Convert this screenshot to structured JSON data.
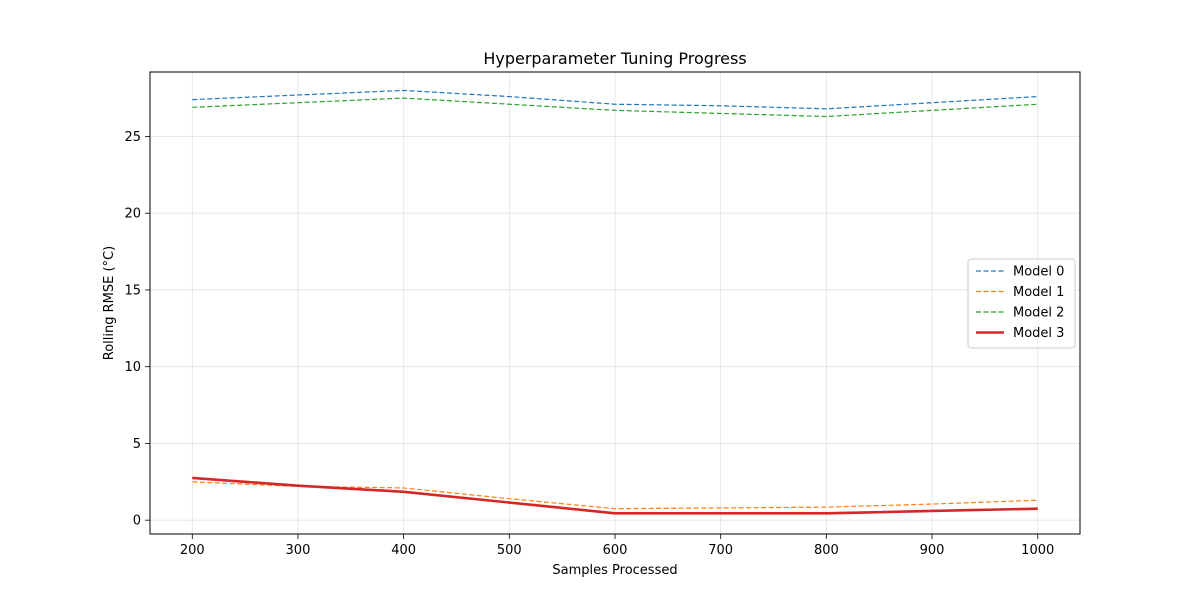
{
  "chart_data": {
    "type": "line",
    "title": "Hyperparameter Tuning Progress",
    "xlabel": "Samples Processed",
    "ylabel": "Rolling RMSE (°C)",
    "xlim": [
      160,
      1040
    ],
    "ylim": [
      -0.9,
      29.2
    ],
    "x_ticks": [
      200,
      300,
      400,
      500,
      600,
      700,
      800,
      900,
      1000
    ],
    "y_ticks": [
      0,
      5,
      10,
      15,
      20,
      25
    ],
    "grid": true,
    "legend_position": "center-right",
    "x": [
      200,
      300,
      400,
      500,
      600,
      700,
      800,
      900,
      1000
    ],
    "series": [
      {
        "name": "Model 0",
        "color": "#1f77b4",
        "style": "dashed",
        "width": 1.2,
        "values": [
          27.4,
          27.7,
          28.0,
          27.6,
          27.1,
          27.0,
          26.8,
          27.2,
          27.6
        ]
      },
      {
        "name": "Model 1",
        "color": "#ff7f0e",
        "style": "dashed",
        "width": 1.2,
        "values": [
          2.5,
          2.2,
          2.1,
          1.4,
          0.75,
          0.8,
          0.85,
          1.05,
          1.3
        ]
      },
      {
        "name": "Model 2",
        "color": "#2ca02c",
        "style": "dashed",
        "width": 1.2,
        "values": [
          26.9,
          27.2,
          27.5,
          27.1,
          26.7,
          26.5,
          26.3,
          26.7,
          27.1
        ]
      },
      {
        "name": "Model 3",
        "color": "#d62728",
        "style": "solid",
        "width": 2.6,
        "values": [
          2.75,
          2.25,
          1.85,
          1.15,
          0.45,
          0.45,
          0.45,
          0.6,
          0.75
        ]
      }
    ]
  }
}
